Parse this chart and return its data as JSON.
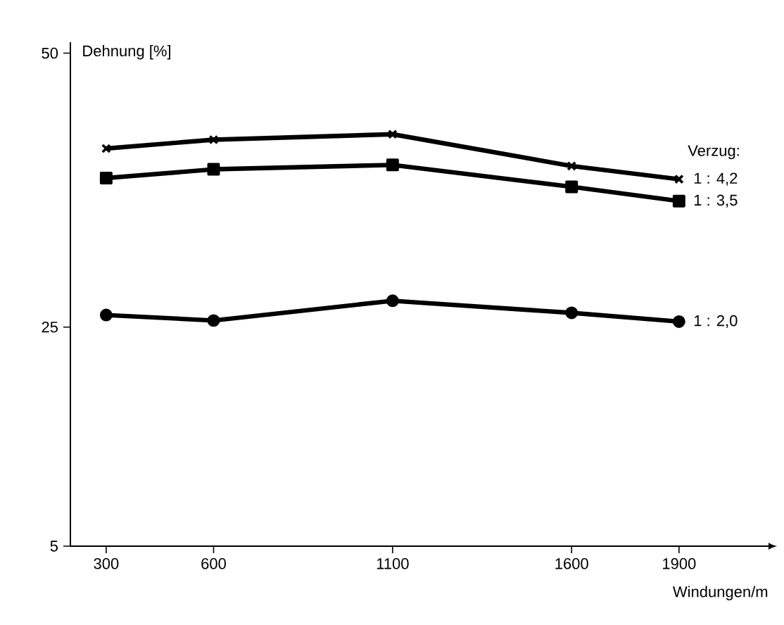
{
  "chart_data": {
    "type": "line",
    "xlabel": "Windungen/m",
    "ylabel": "Dehnung [%]",
    "legend_title": "Verzug:",
    "x": [
      300,
      600,
      1100,
      1600,
      1900
    ],
    "series": [
      {
        "name": "1 : 4,2",
        "color": "#000000",
        "marker": "cross",
        "values": [
          41.3,
          42.1,
          42.6,
          39.7,
          38.5
        ]
      },
      {
        "name": "1 : 3,5",
        "color": "#000000",
        "marker": "square",
        "values": [
          38.6,
          39.4,
          39.8,
          37.8,
          36.5
        ]
      },
      {
        "name": "1 : 2,0",
        "color": "#000000",
        "marker": "circle",
        "values": [
          26.1,
          25.6,
          27.4,
          26.3,
          25.5
        ]
      }
    ],
    "xlim": [
      200,
      2150
    ],
    "ylim": [
      5,
      51
    ],
    "xticks": [
      300,
      600,
      1100,
      1600,
      1900
    ],
    "yticks": [
      5,
      25,
      50
    ],
    "grid": false
  }
}
